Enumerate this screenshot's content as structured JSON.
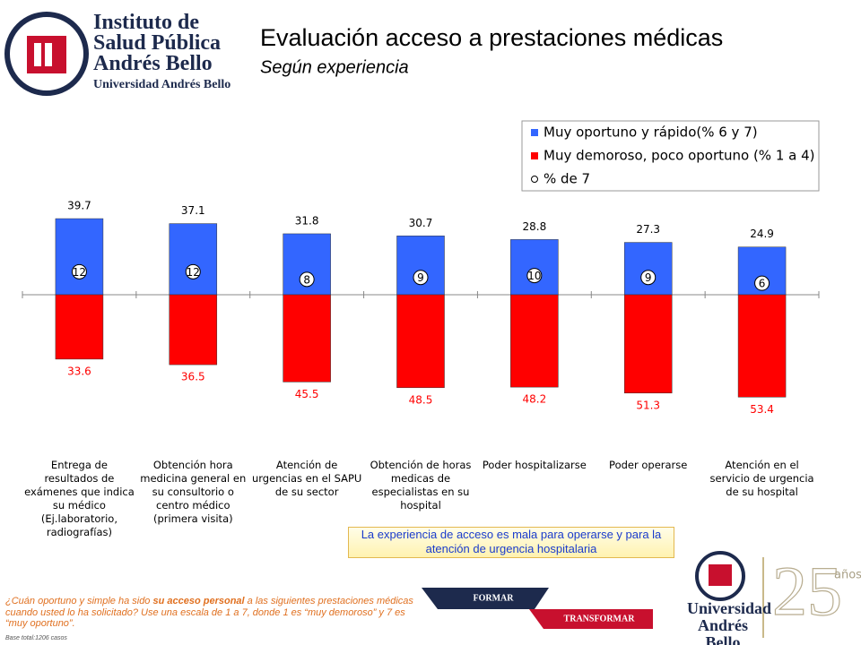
{
  "logo": {
    "lines": [
      "Instituto de",
      "Salud Pública",
      "Andrés Bello"
    ],
    "university": "Universidad Andrés Bello"
  },
  "chart_data": {
    "type": "bar",
    "title": "Evaluación acceso a prestaciones médicas",
    "subtitle": "Según experiencia",
    "categories": [
      "Entrega de resultados de exámenes que indica su médico (Ej.laboratorio, radiografías)",
      "Obtención hora medicina general en su consultorio o centro médico (primera visita)",
      "Atención de urgencias en el SAPU de su sector",
      "Obtención de horas medicas de especialistas en su hospital",
      "Poder hospitalizarse",
      "Poder operarse",
      "Atención en el servicio de urgencia de su hospital"
    ],
    "series": [
      {
        "name": "Muy oportuno y rápido(% 6 y 7)",
        "color": "#3366ff",
        "values": [
          39.7,
          37.1,
          31.8,
          30.7,
          28.8,
          27.3,
          24.9
        ]
      },
      {
        "name": "Muy demoroso, poco oportuno (% 1 a 4)",
        "color": "#ff0000",
        "values": [
          33.6,
          36.5,
          45.5,
          48.5,
          48.2,
          51.3,
          53.4
        ]
      },
      {
        "name": "% de 7",
        "color": "#ffffff",
        "values": [
          12,
          12,
          8,
          9,
          10,
          9,
          6
        ]
      }
    ],
    "legend": "top-right"
  },
  "callout": "La experiencia de acceso es mala para operarse y para la atención de urgencia hospitalaria",
  "footnote": {
    "parts": [
      "¿Cuán oportuno y simple ha sido ",
      "su acceso personal",
      " a las siguientes prestaciones médicas cuando usted lo ha solicitado? Use una escala de 1 a 7, donde 1 es “muy demoroso” y 7 es “muy oportuno”."
    ],
    "base": "Base total:1206 casos"
  },
  "banner": {
    "top": "FORMAR",
    "bottom": "TRANSFORMAR"
  },
  "footer_logo": {
    "lines": [
      "Universidad",
      "Andrés Bello"
    ]
  },
  "anniversary": {
    "number": "25",
    "text": "años"
  }
}
